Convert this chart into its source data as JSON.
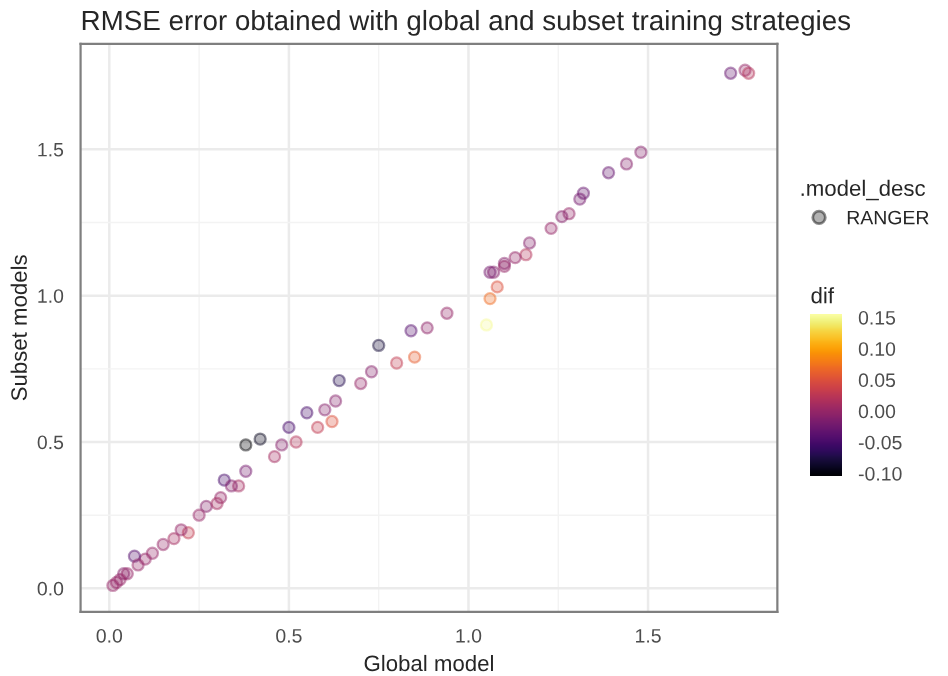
{
  "chart_data": {
    "type": "scatter",
    "title": "RMSE error obtained with global and subset training strategies",
    "xlabel": "Global model",
    "ylabel": "Subset models",
    "legend_title": ".model_desc",
    "clabel": "dif",
    "x": [
      1.73,
      1.77,
      1.78,
      1.48,
      1.44,
      1.39,
      1.32,
      1.31,
      1.28,
      1.26,
      1.23,
      1.17,
      1.16,
      1.13,
      1.1,
      1.07,
      1.06,
      1.1,
      1.08,
      1.06,
      1.05,
      0.94,
      0.885,
      0.84,
      0.85,
      0.8,
      0.75,
      0.73,
      0.7,
      0.64,
      0.63,
      0.6,
      0.62,
      0.58,
      0.55,
      0.5,
      0.52,
      0.48,
      0.46,
      0.42,
      0.38,
      0.38,
      0.36,
      0.32,
      0.31,
      0.27,
      0.22,
      0.18,
      0.1,
      0.07,
      0.04,
      0.01,
      0.02,
      0.03,
      0.05,
      0.08,
      0.12,
      0.15,
      0.2,
      0.25,
      0.3,
      0.34
    ],
    "series": [
      {
        "name": "RANGER",
        "values": [
          1.76,
          1.77,
          1.76,
          1.49,
          1.45,
          1.42,
          1.35,
          1.33,
          1.28,
          1.27,
          1.23,
          1.18,
          1.14,
          1.13,
          1.11,
          1.08,
          1.08,
          1.1,
          1.03,
          0.99,
          0.9,
          0.94,
          0.89,
          0.88,
          0.79,
          0.77,
          0.83,
          0.74,
          0.7,
          0.71,
          0.64,
          0.61,
          0.57,
          0.55,
          0.6,
          0.55,
          0.5,
          0.49,
          0.45,
          0.51,
          0.49,
          0.4,
          0.35,
          0.37,
          0.31,
          0.28,
          0.19,
          0.17,
          0.1,
          0.11,
          0.05,
          0.01,
          0.02,
          0.03,
          0.05,
          0.08,
          0.12,
          0.15,
          0.2,
          0.25,
          0.29,
          0.35
        ],
        "cvalues": [
          -0.03,
          0.0,
          0.02,
          -0.01,
          -0.01,
          -0.03,
          -0.03,
          -0.02,
          0.0,
          -0.01,
          0.0,
          -0.01,
          0.02,
          0.0,
          -0.01,
          -0.01,
          -0.02,
          0.0,
          0.05,
          0.07,
          0.15,
          0.0,
          -0.005,
          -0.04,
          0.06,
          0.03,
          -0.08,
          -0.01,
          0.0,
          -0.07,
          -0.01,
          -0.01,
          0.05,
          0.03,
          -0.05,
          -0.05,
          0.02,
          -0.01,
          0.01,
          -0.09,
          -0.11,
          -0.02,
          0.01,
          -0.05,
          0.0,
          -0.01,
          0.03,
          0.01,
          0.0,
          -0.04,
          -0.01,
          0.0,
          0.0,
          0.0,
          0.0,
          0.0,
          0.0,
          0.0,
          0.0,
          0.0,
          0.01,
          -0.01
        ]
      }
    ],
    "xlim": [
      -0.08,
      1.86
    ],
    "ylim": [
      -0.08,
      1.86
    ],
    "xticks": [
      {
        "value": 0,
        "label": "0.0"
      },
      0.5,
      {
        "value": 1,
        "label": "1.0"
      },
      1.5
    ],
    "yticks": [
      {
        "value": 0,
        "label": "0.0"
      },
      0.5,
      {
        "value": 1,
        "label": "1.0"
      },
      1.5
    ],
    "clim": [
      -0.105,
      0.155
    ],
    "cticks": [
      0.15,
      {
        "value": 0.1,
        "label": "0.10"
      },
      0.05,
      {
        "value": 0,
        "label": "0.00"
      },
      -0.05,
      {
        "value": -0.1,
        "label": "-0.10"
      }
    ],
    "grid": true,
    "legend": "right",
    "marker": "circle"
  }
}
